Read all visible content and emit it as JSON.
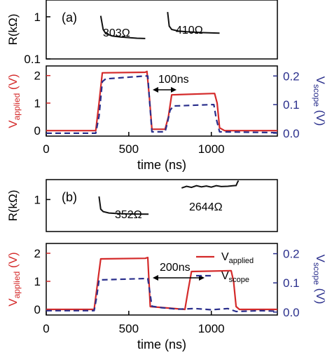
{
  "colors": {
    "applied": "#d42a2a",
    "scope": "#2a2f8c",
    "resistance": "#111111",
    "axis": "#000000"
  },
  "chart_data": [
    {
      "panel": "(a)",
      "type": "line",
      "resistance_plot": {
        "ylabel": "R(kΩ)",
        "yscale": "log",
        "ylim": [
          0.1,
          2.5
        ],
        "yticks": [
          0.1,
          1
        ],
        "ytick_labels": [
          "0.1",
          "1"
        ],
        "segments": [
          {
            "label": "303Ω",
            "x": [
              330,
              345,
              360,
              400,
              450,
              500,
              550,
              600
            ],
            "y": [
              1.05,
              0.5,
              0.4,
              0.35,
              0.33,
              0.32,
              0.31,
              0.305
            ]
          },
          {
            "label": "410Ω",
            "x": [
              735,
              745,
              760,
              800,
              850,
              900,
              950,
              1000,
              1050
            ],
            "y": [
              1.3,
              0.6,
              0.5,
              0.46,
              0.44,
              0.43,
              0.42,
              0.415,
              0.41
            ]
          }
        ]
      },
      "voltage_plot": {
        "xlabel": "time (ns)",
        "xlim": [
          0,
          1400
        ],
        "xticks": [
          0,
          500,
          1000
        ],
        "ylabel_left": "Vapplied (V)",
        "ylabel_right": "Vscope (V)",
        "ylim_left": [
          -0.2,
          2.35
        ],
        "yticks_left": [
          0,
          1,
          2
        ],
        "ylim_right": [
          -0.01,
          0.235
        ],
        "yticks_right": [
          "0.0",
          "0.1",
          "0.2"
        ],
        "annotation": "100ns",
        "series": [
          {
            "key": "applied",
            "x": [
              0,
              300,
              320,
              340,
              600,
              610,
              625,
              640,
              720,
              740,
              760,
              1020,
              1035,
              1050,
              1080,
              1400
            ],
            "y": [
              0.0,
              0.0,
              1.0,
              2.1,
              2.12,
              2.15,
              1.2,
              0.05,
              0.05,
              0.5,
              1.3,
              1.35,
              1.0,
              0.1,
              0.0,
              0.0
            ]
          },
          {
            "key": "scope",
            "x": [
              0,
              300,
              320,
              340,
              360,
              600,
              615,
              625,
              640,
              720,
              735,
              750,
              770,
              1000,
              1015,
              1030,
              1050,
              1400
            ],
            "y": [
              0.0,
              0.0,
              0.06,
              0.18,
              0.19,
              0.2,
              0.2,
              0.12,
              0.005,
              0.005,
              0.04,
              0.08,
              0.095,
              0.1,
              0.1,
              0.05,
              0.005,
              0.002
            ]
          }
        ]
      }
    },
    {
      "panel": "(b)",
      "type": "line",
      "resistance_plot": {
        "ylabel": "R(kΩ)",
        "yscale": "log",
        "ylim": [
          0.1,
          4.2
        ],
        "yticks": [
          1
        ],
        "ytick_labels": [
          "1"
        ],
        "segments": [
          {
            "label": "352Ω",
            "x": [
              320,
              330,
              345,
              380,
              450,
              500,
              550,
              620
            ],
            "y": [
              1.25,
              0.5,
              0.42,
              0.38,
              0.36,
              0.355,
              0.352,
              0.35
            ]
          },
          {
            "label": "2644Ω",
            "x": [
              820,
              850,
              880,
              910,
              940,
              970,
              1000,
              1030,
              1060,
              1100,
              1130,
              1150,
              1160,
              1165
            ],
            "y": [
              2.3,
              2.6,
              2.4,
              2.7,
              2.5,
              2.65,
              2.45,
              2.7,
              2.55,
              2.6,
              2.7,
              2.75,
              3.6,
              3.9
            ]
          }
        ]
      },
      "voltage_plot": {
        "xlabel": "time (ns)",
        "xlim": [
          0,
          1400
        ],
        "xticks": [
          0,
          500,
          1000
        ],
        "ylabel_left": "Vapplied (V)",
        "ylabel_right": "Vscope (V)",
        "ylim_left": [
          -0.2,
          2.35
        ],
        "yticks_left": [
          0,
          1,
          2
        ],
        "ylim_right": [
          -0.01,
          0.235
        ],
        "yticks_right": [
          "0.0",
          "0.1",
          "0.2"
        ],
        "annotation": "200ns",
        "legend_position": "top-right",
        "legend": [
          {
            "key": "applied",
            "main": "V",
            "sub": "applied"
          },
          {
            "key": "scope",
            "main": "V",
            "sub": "scope"
          }
        ],
        "series": [
          {
            "key": "applied",
            "x": [
              0,
              290,
              310,
              330,
              600,
              615,
              630,
              840,
              860,
              880,
              1120,
              1135,
              1150,
              1170,
              1400
            ],
            "y": [
              0.0,
              0.0,
              0.9,
              1.8,
              1.82,
              1.85,
              0.1,
              0.0,
              0.7,
              1.35,
              1.38,
              1.0,
              0.1,
              0.0,
              0.0
            ]
          },
          {
            "key": "scope",
            "x": [
              0,
              290,
              305,
              320,
              600,
              615,
              630,
              640,
              700,
              800,
              900,
              1000,
              1100,
              1150,
              1200,
              1300,
              1400
            ],
            "y": [
              0.005,
              0.005,
              0.05,
              0.11,
              0.115,
              0.115,
              0.06,
              0.02,
              0.015,
              0.01,
              0.012,
              0.008,
              0.012,
              0.002,
              0.003,
              0.005,
              0.003
            ]
          }
        ]
      }
    }
  ]
}
